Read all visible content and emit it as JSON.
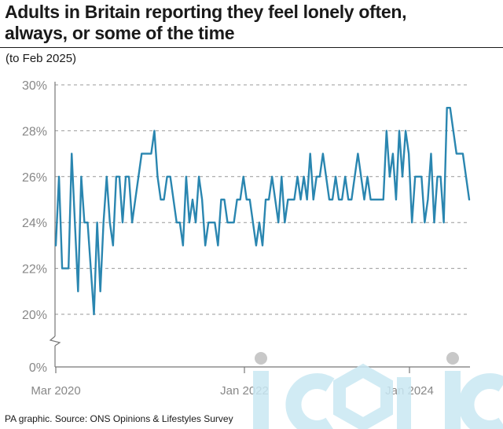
{
  "header": {
    "title_line1": "Adults in Britain reporting they feel lonely often,",
    "title_line2": "always, or some of the time",
    "subtitle": "(to Feb 2025)"
  },
  "footer": {
    "source": "PA graphic. Source: ONS Opinions & Lifestyles Survey"
  },
  "watermark": {
    "text": "iconic"
  },
  "colors": {
    "line": "#2a86b0",
    "grid": "#999999",
    "axis": "#777777",
    "watermark": "#c9e8f3"
  },
  "chart_data": {
    "type": "line",
    "title": "Adults in Britain reporting they feel lonely often, always, or some of the time",
    "subtitle": "(to Feb 2025)",
    "xlabel": "",
    "ylabel": "",
    "ylim": [
      20,
      30
    ],
    "axis_break": true,
    "y_ticks": [
      20,
      22,
      24,
      26,
      28,
      30
    ],
    "y_tick_labels": [
      "0%",
      "20%",
      "22%",
      "24%",
      "26%",
      "28%",
      "30%"
    ],
    "x_tick_labels": [
      "Mar 2020",
      "Jan 2022",
      "Jan 2024"
    ],
    "grid": "horizontal dashed",
    "series": [
      {
        "name": "",
        "values": [
          23,
          26,
          22,
          22,
          22,
          27,
          24,
          21,
          26,
          24,
          24,
          22,
          20,
          24,
          21,
          24,
          26,
          24,
          23,
          26,
          26,
          24,
          26,
          26,
          24,
          25,
          26,
          27,
          27,
          27,
          27,
          28,
          26,
          25,
          25,
          26,
          26,
          25,
          24,
          24,
          23,
          26,
          24,
          25,
          24,
          26,
          25,
          23,
          24,
          24,
          24,
          23,
          25,
          25,
          24,
          24,
          24,
          25,
          25,
          26,
          25,
          25,
          24,
          23,
          24,
          23,
          25,
          25,
          26,
          25,
          24,
          26,
          24,
          25,
          25,
          25,
          26,
          25,
          26,
          25,
          27,
          25,
          26,
          26,
          27,
          26,
          25,
          25,
          26,
          25,
          25,
          26,
          25,
          25,
          26,
          27,
          26,
          25,
          26,
          25,
          25,
          25,
          25,
          25,
          28,
          26,
          27,
          25,
          28,
          26,
          28,
          27,
          24,
          26,
          26,
          26,
          24,
          25,
          27,
          24,
          26,
          26,
          24,
          29,
          29,
          28,
          27,
          27,
          27,
          26,
          25
        ]
      }
    ]
  }
}
